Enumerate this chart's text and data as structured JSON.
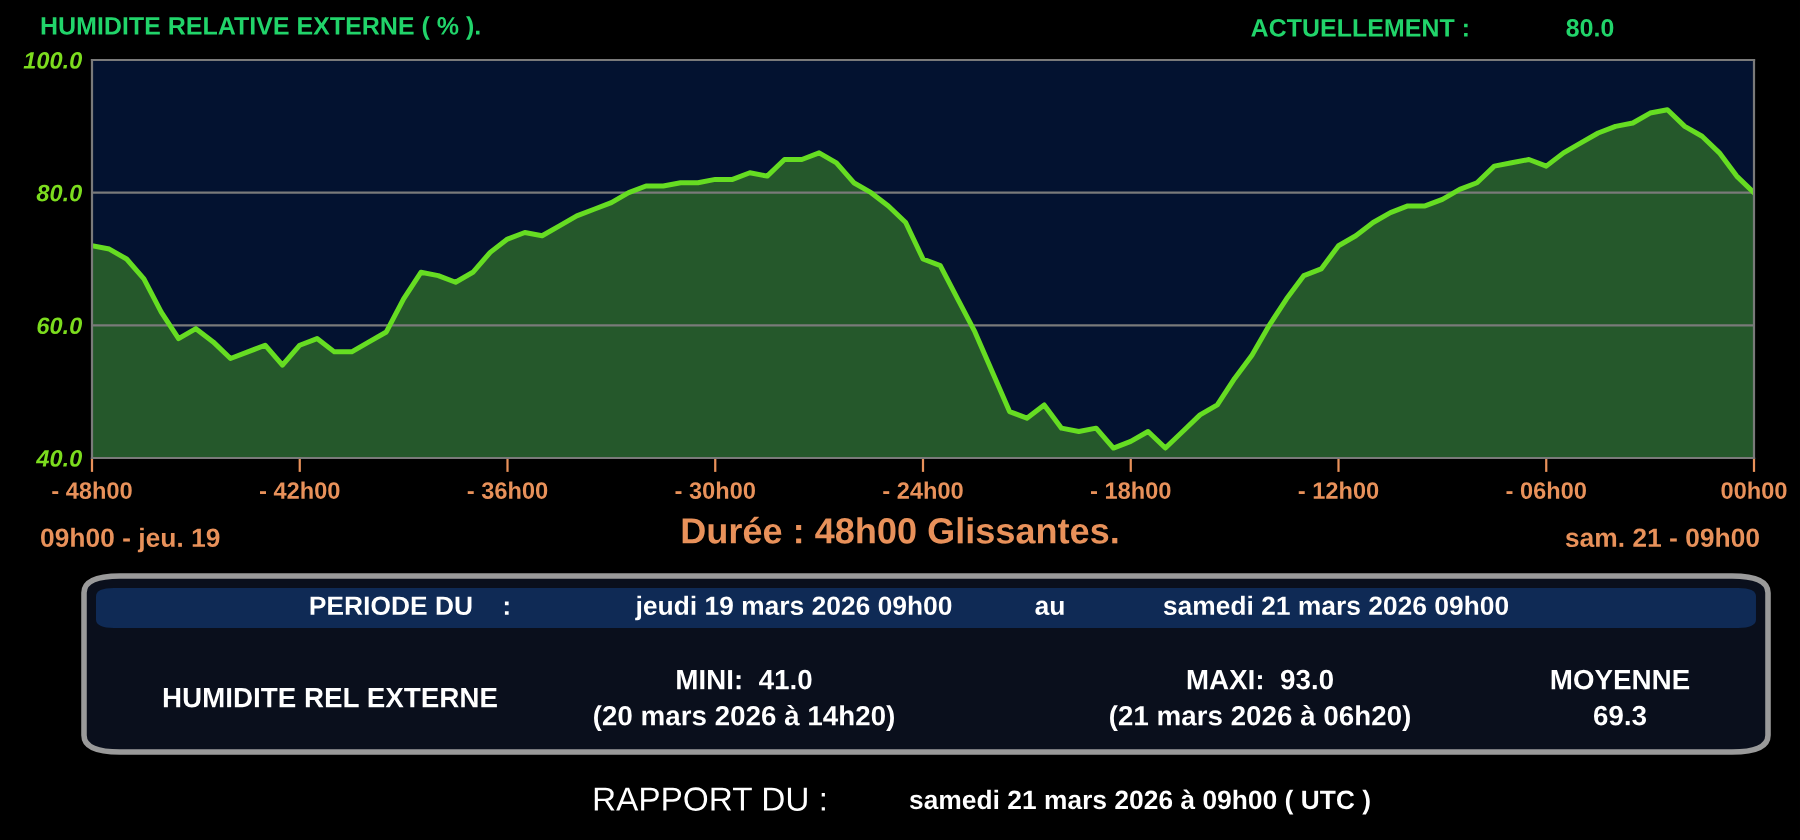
{
  "chart_data": {
    "type": "area",
    "title": "HUMIDITE RELATIVE EXTERNE ( % ).",
    "categories": [
      "- 48h00",
      null,
      null,
      null,
      null,
      null,
      null,
      null,
      null,
      null,
      null,
      null,
      "- 42h00",
      null,
      null,
      null,
      null,
      null,
      null,
      null,
      null,
      null,
      null,
      null,
      "- 36h00",
      null,
      null,
      null,
      null,
      null,
      null,
      null,
      null,
      null,
      null,
      null,
      "- 30h00",
      null,
      null,
      null,
      null,
      null,
      null,
      null,
      null,
      null,
      null,
      null,
      "- 24h00",
      null,
      null,
      null,
      null,
      null,
      null,
      null,
      null,
      null,
      null,
      null,
      "- 18h00",
      null,
      null,
      null,
      null,
      null,
      null,
      null,
      null,
      null,
      null,
      null,
      "- 12h00",
      null,
      null,
      null,
      null,
      null,
      null,
      null,
      null,
      null,
      null,
      null,
      "- 06h00",
      null,
      null,
      null,
      null,
      null,
      null,
      null,
      null,
      null,
      null,
      null,
      "00h00"
    ],
    "series": [
      {
        "color": "#66dd22",
        "values": [
          72,
          71.5,
          70,
          67,
          62,
          58,
          59.5,
          57.5,
          55,
          56,
          57,
          54,
          57,
          58,
          56,
          56,
          57.5,
          59,
          64,
          68,
          67.5,
          66.5,
          68,
          71,
          73,
          74,
          73.5,
          75,
          76.5,
          77.5,
          78.5,
          80,
          81,
          81,
          81.5,
          81.5,
          82,
          82,
          83,
          82.5,
          85,
          85,
          86,
          84.5,
          81.5,
          80,
          78,
          75.5,
          70,
          69,
          64,
          59,
          53,
          47,
          46,
          48,
          44.5,
          44,
          44.5,
          41.5,
          42.5,
          44,
          41.5,
          44,
          46.5,
          48,
          52,
          55.5,
          60,
          64,
          67.5,
          68.5,
          72,
          73.5,
          75.5,
          77,
          78,
          78,
          79,
          80.5,
          81.5,
          84,
          84.5,
          85,
          84,
          86,
          87.5,
          89,
          90,
          90.5,
          92,
          92.5,
          90,
          88.5,
          86,
          82.5,
          80
        ]
      }
    ],
    "ylim": [
      40,
      100
    ],
    "yticks": [
      {
        "value": 40,
        "label": "40.0"
      },
      {
        "value": 60,
        "label": "60.0"
      },
      {
        "value": 80,
        "label": "80.0"
      },
      {
        "value": 100,
        "label": "100.0"
      }
    ],
    "grid": "y",
    "legend": false,
    "marker": "none",
    "line_style": "solid",
    "annotations": [
      "ACTUELLEMENT :",
      "80.0",
      "09h00 - jeu. 19",
      "Durée : 48h00 Glissantes.",
      "sam. 21 - 09h00",
      "PERIODE DU    :",
      "jeudi 19 mars 2026 09h00",
      "au",
      "samedi 21 mars 2026 09h00",
      "HUMIDITE REL EXTERNE",
      "MINI:  41.0",
      "(20 mars 2026 à 14h20)",
      "MAXI:  93.0",
      "(21 mars 2026 à 06h20)",
      "MOYENNE",
      "69.3",
      "RAPPORT DU :",
      "samedi 21 mars 2026 à 09h00 ( UTC )"
    ]
  }
}
